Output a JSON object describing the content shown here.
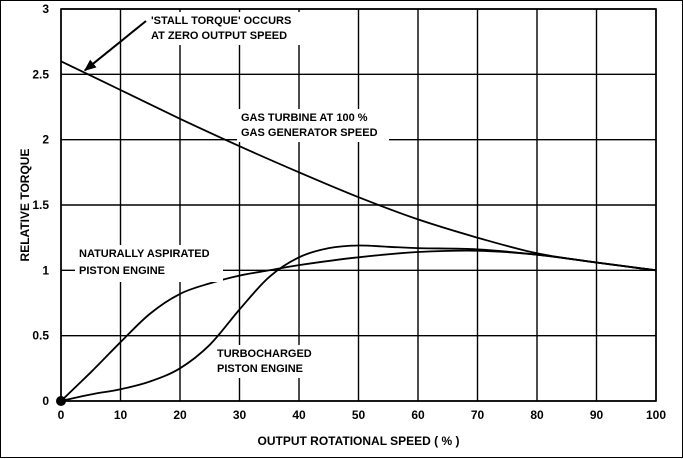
{
  "chart_data": {
    "type": "line",
    "title": "",
    "xlabel": "OUTPUT ROTATIONAL SPEED ( % )",
    "ylabel": "RELATIVE TORQUE",
    "xlim": [
      0,
      100
    ],
    "ylim": [
      0,
      3
    ],
    "x_ticks": [
      "0",
      "10",
      "20",
      "30",
      "40",
      "50",
      "60",
      "70",
      "80",
      "90",
      "100"
    ],
    "y_ticks": [
      "0",
      "0.5",
      "1",
      "1.5",
      "2",
      "2.5",
      "3"
    ],
    "grid": true,
    "legend": "none",
    "series": [
      {
        "name": "GAS TURBINE AT 100 % GAS GENERATOR SPEED",
        "x": [
          0,
          10,
          20,
          30,
          40,
          50,
          60,
          70,
          80,
          90,
          100
        ],
        "y": [
          2.6,
          2.38,
          2.16,
          1.95,
          1.75,
          1.56,
          1.39,
          1.25,
          1.13,
          1.06,
          1.0
        ]
      },
      {
        "name": "NATURALLY ASPIRATED PISTON ENGINE",
        "x": [
          0,
          5,
          10,
          15,
          20,
          25,
          30,
          35,
          40,
          50,
          60,
          70,
          80,
          90,
          100
        ],
        "y": [
          0.0,
          0.22,
          0.45,
          0.67,
          0.82,
          0.9,
          0.96,
          1.0,
          1.04,
          1.1,
          1.14,
          1.15,
          1.12,
          1.06,
          1.0
        ]
      },
      {
        "name": "TURBOCHARGED PISTON ENGINE",
        "x": [
          0,
          5,
          10,
          15,
          20,
          25,
          30,
          35,
          40,
          45,
          50,
          55,
          60,
          70,
          80,
          90,
          100
        ],
        "y": [
          0.0,
          0.05,
          0.09,
          0.15,
          0.25,
          0.43,
          0.7,
          0.95,
          1.1,
          1.17,
          1.19,
          1.18,
          1.17,
          1.16,
          1.12,
          1.06,
          1.0
        ]
      }
    ],
    "point_marker": {
      "x": 0,
      "y": 0
    },
    "annotations": [
      {
        "id": "stall",
        "lines": [
          "'STALL TORQUE' OCCURS",
          "AT ZERO OUTPUT SPEED"
        ],
        "arrow_to": {
          "x": 4,
          "y": 2.53
        }
      },
      {
        "id": "gas-turbine",
        "lines": [
          "GAS TURBINE AT 100 %",
          "GAS GENERATOR SPEED"
        ]
      },
      {
        "id": "naturally-aspirated",
        "lines": [
          "NATURALLY ASPIRATED",
          "PISTON ENGINE"
        ]
      },
      {
        "id": "turbocharged",
        "lines": [
          "TURBOCHARGED",
          "PISTON ENGINE"
        ]
      }
    ],
    "colors": {
      "line": "#000000",
      "grid": "#000000"
    }
  }
}
